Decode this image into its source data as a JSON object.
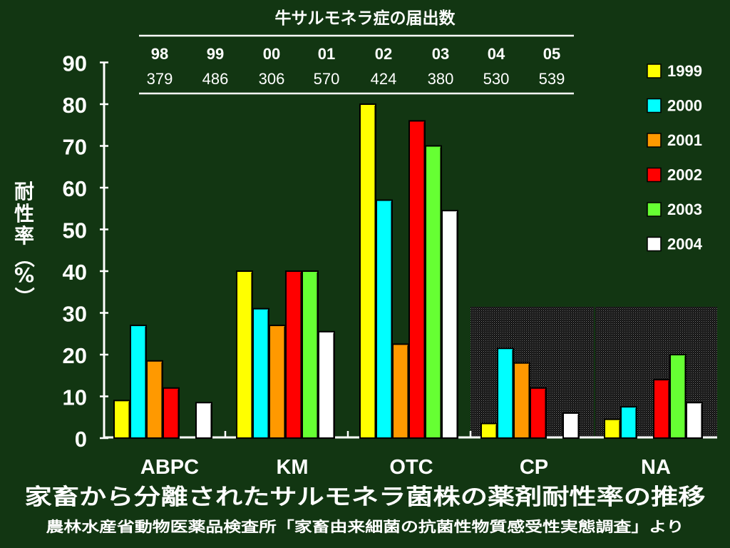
{
  "chart_data": {
    "type": "bar",
    "ylabel": "耐性率（%）",
    "ylim": [
      0,
      90
    ],
    "yticks": [
      "0",
      "10",
      "20",
      "30",
      "40",
      "50",
      "60",
      "70",
      "80",
      "90"
    ],
    "categories": [
      "ABPC",
      "KM",
      "OTC",
      "CP",
      "NA"
    ],
    "shaded_categories": [
      "CP",
      "NA"
    ],
    "series": [
      {
        "name": "1999",
        "color": "#ffff00",
        "values": [
          9,
          40,
          80,
          3.5,
          4.5
        ]
      },
      {
        "name": "2000",
        "color": "#00ffff",
        "values": [
          27,
          31,
          57,
          21.5,
          7.5
        ]
      },
      {
        "name": "2001",
        "color": "#ff9900",
        "values": [
          18.5,
          27,
          22.5,
          18,
          null
        ]
      },
      {
        "name": "2002",
        "color": "#ff0000",
        "values": [
          12,
          40,
          76,
          12,
          14
        ]
      },
      {
        "name": "2003",
        "color": "#66ff33",
        "values": [
          null,
          40,
          70,
          0,
          20
        ]
      },
      {
        "name": "2004",
        "color": "#ffffff",
        "values": [
          8.5,
          25.5,
          54.5,
          6,
          8.5
        ]
      }
    ],
    "legend_position": "right",
    "inset_table": {
      "title": "牛サルモネラ症の届出数",
      "years": [
        "98",
        "99",
        "00",
        "01",
        "02",
        "03",
        "04",
        "05"
      ],
      "counts": [
        "379",
        "486",
        "306",
        "570",
        "424",
        "380",
        "530",
        "539"
      ]
    }
  },
  "footer": {
    "title": "家畜から分離されたサルモネラ菌株の薬剤耐性率の推移",
    "source": "農林水産省動物医薬品検査所「家畜由来細菌の抗菌性物質感受性実態調査」より"
  }
}
